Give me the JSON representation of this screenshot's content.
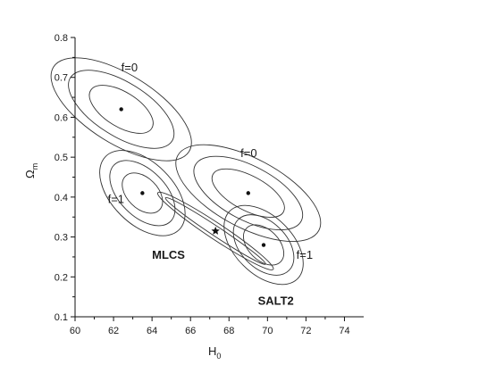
{
  "chart_data": {
    "type": "contour",
    "title": "",
    "xlabel": "H",
    "xlabel_sub": "0",
    "ylabel": "Ω",
    "ylabel_sub": "m",
    "xlim": [
      60,
      75
    ],
    "ylim": [
      0.1,
      0.8
    ],
    "xticks": [
      60,
      62,
      64,
      66,
      68,
      70,
      72,
      74
    ],
    "yticks": [
      0.1,
      0.2,
      0.3,
      0.4,
      0.5,
      0.6,
      0.7,
      0.8
    ],
    "xtick_labels": [
      "60",
      "62",
      "64",
      "66",
      "68",
      "70",
      "72",
      "74"
    ],
    "ytick_labels": [
      "0.1",
      "0.2",
      "0.3",
      "0.4",
      "0.5",
      "0.6",
      "0.7",
      "0.8"
    ],
    "ellipse_sets": [
      {
        "group": "MLCS",
        "f": "f=0",
        "center": [
          62.4,
          0.62
        ],
        "rx": [
          0.9,
          1.4,
          1.8
        ],
        "ry": [
          0.09,
          0.15,
          0.2
        ],
        "rotate_deg": -58
      },
      {
        "group": "MLCS",
        "f": "f=1",
        "center": [
          63.5,
          0.41
        ],
        "rx": [
          0.8,
          1.2,
          1.6
        ],
        "ry": [
          0.06,
          0.1,
          0.13
        ],
        "rotate_deg": -45
      },
      {
        "group": "SALT2",
        "f": "f=0",
        "center": [
          69.0,
          0.41
        ],
        "rx": [
          0.9,
          1.4,
          1.8
        ],
        "ry": [
          0.1,
          0.15,
          0.2
        ],
        "rotate_deg": -62
      },
      {
        "group": "SALT2",
        "f": "f=1",
        "center": [
          69.8,
          0.28
        ],
        "rx": [
          0.8,
          1.2,
          1.5
        ],
        "ry": [
          0.06,
          0.09,
          0.12
        ],
        "rotate_deg": -45
      }
    ],
    "points": [
      {
        "x": 62.4,
        "y": 0.62
      },
      {
        "x": 63.5,
        "y": 0.41
      },
      {
        "x": 69.0,
        "y": 0.41
      },
      {
        "x": 69.8,
        "y": 0.28
      }
    ],
    "combined_point": {
      "x": 67.3,
      "y": 0.315
    },
    "combined_contours": [
      {
        "center": [
          67.3,
          0.315
        ],
        "half_length_x": 2.6,
        "half_width_y": 0.012,
        "slope": -0.032
      },
      {
        "center": [
          67.3,
          0.315
        ],
        "half_length_x": 3.0,
        "half_width_y": 0.02,
        "slope": -0.032
      }
    ],
    "annotations": [
      {
        "text": "f=0",
        "x": 62.4,
        "y": 0.715,
        "bold": false
      },
      {
        "text": "f=1",
        "x": 61.7,
        "y": 0.385,
        "bold": false
      },
      {
        "text": "MLCS",
        "x": 64.0,
        "y": 0.245,
        "bold": true
      },
      {
        "text": "f=0",
        "x": 68.6,
        "y": 0.5,
        "bold": false
      },
      {
        "text": "f=1",
        "x": 71.5,
        "y": 0.245,
        "bold": false
      },
      {
        "text": "SALT2",
        "x": 69.5,
        "y": 0.13,
        "bold": true
      }
    ]
  }
}
